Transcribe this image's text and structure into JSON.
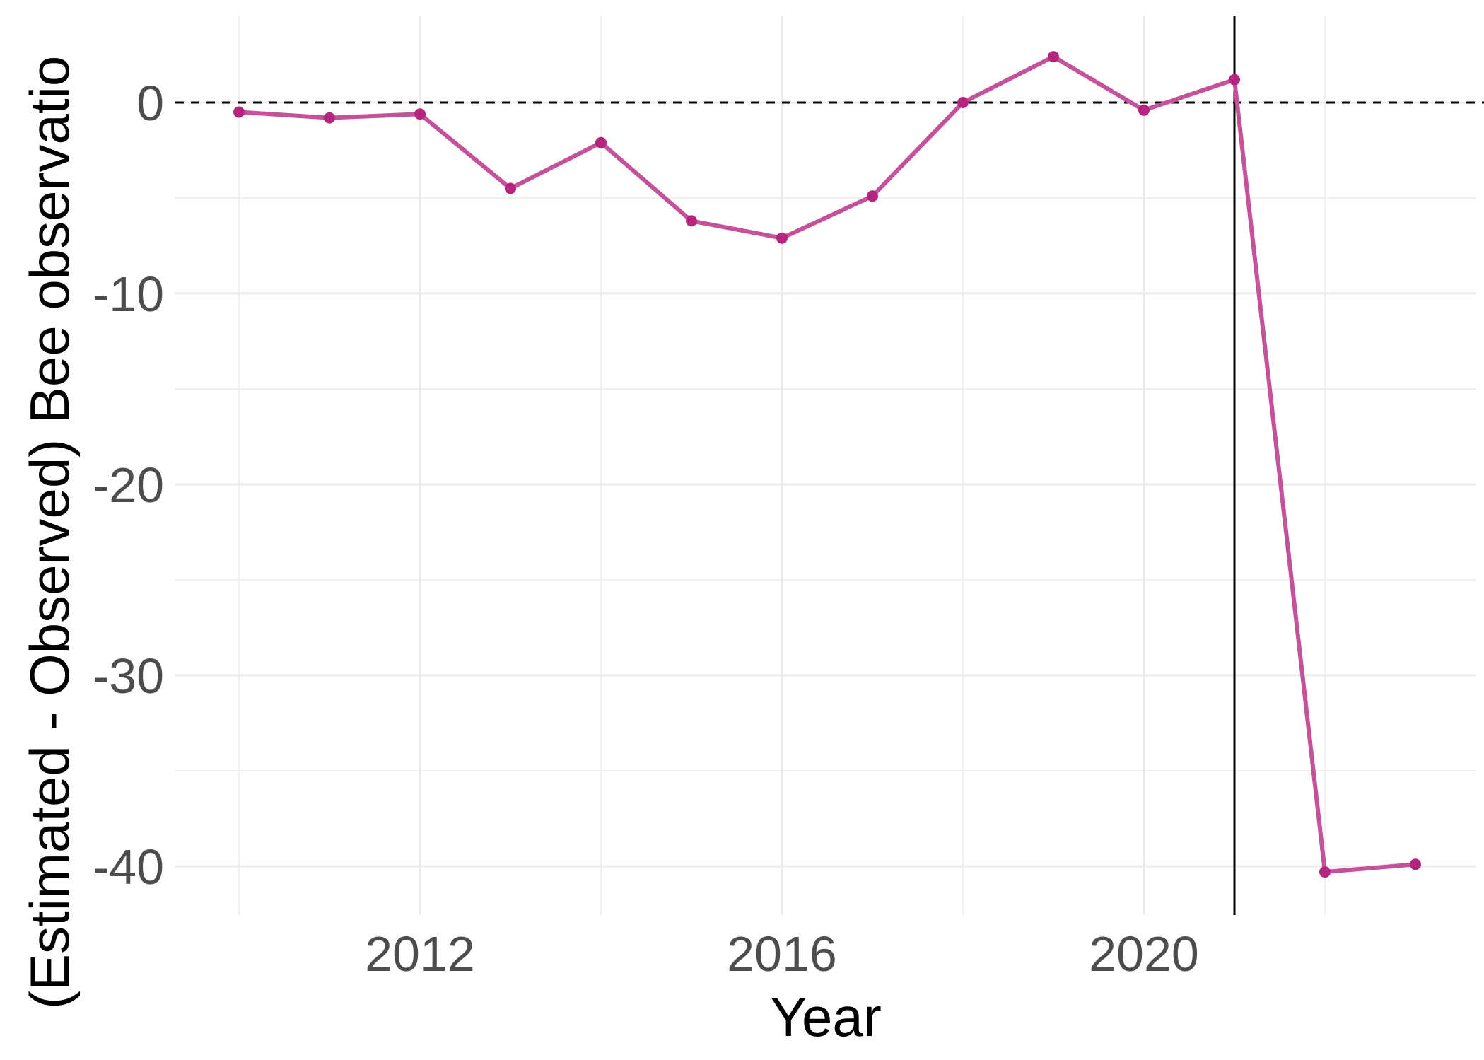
{
  "chart_data": {
    "type": "line",
    "title": "",
    "xlabel": "Year",
    "ylabel": "(Estimated - Observed) Bee observatio",
    "xlim": [
      2009.7,
      2023.6
    ],
    "ylim": [
      -42.3,
      5.1
    ],
    "x_ticks": [
      2012,
      2016,
      2020
    ],
    "x_minor_ticks": [
      2010,
      2014,
      2018,
      2022
    ],
    "y_ticks": [
      0,
      -10,
      -20,
      -30,
      -40
    ],
    "y_minor_ticks": [
      -5,
      -15,
      -25,
      -35
    ],
    "grid": true,
    "legend": "none",
    "reference_lines": {
      "horizontal_dashed_y": 0,
      "vertical_solid_x": 2021
    },
    "series": [
      {
        "color": "#c4519a",
        "point_color": "#b5257f",
        "x": [
          2010,
          2011,
          2012,
          2013,
          2014,
          2015,
          2016,
          2017,
          2018,
          2019,
          2020,
          2021,
          2022,
          2023
        ],
        "y": [
          -0.5,
          -0.8,
          -0.6,
          -4.5,
          -2.1,
          -6.2,
          -7.1,
          -4.9,
          0.0,
          2.4,
          -0.4,
          1.2,
          -40.3,
          -39.9
        ]
      }
    ]
  }
}
